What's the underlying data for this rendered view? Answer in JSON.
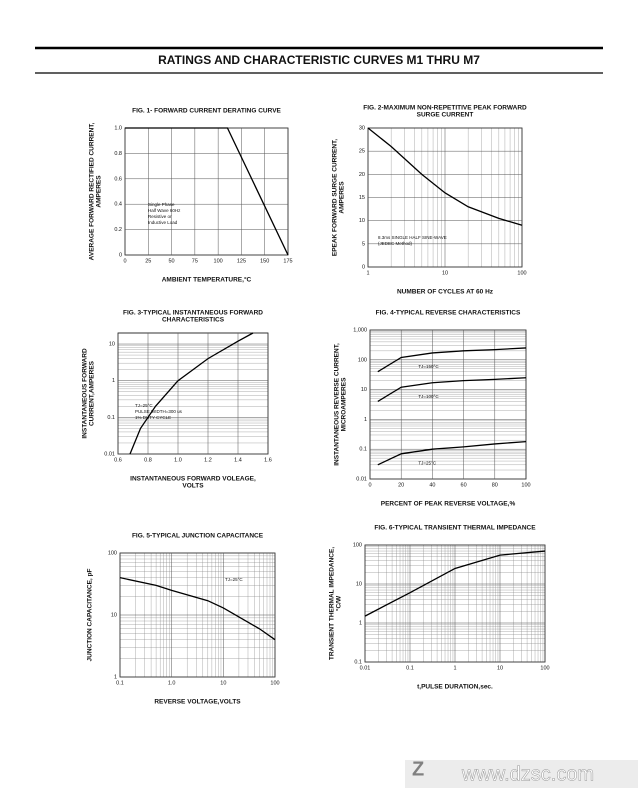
{
  "title": "RATINGS AND CHARACTERISTIC CURVES M1 THRU M7",
  "watermark": "www.dzsc.com",
  "chart_data": [
    {
      "type": "line",
      "title": [
        "FIG. 1- FORWARD CURRENT DERATING CURVE"
      ],
      "xlabel": [
        "AMBIENT TEMPERATURE,°C"
      ],
      "ylabel": [
        "AVERAGE FORWARD RECTIFIED CURRENT,",
        "AMPERES"
      ],
      "x": [
        0,
        110,
        175
      ],
      "series": [
        {
          "color": "#000000",
          "values": [
            1,
            1,
            0
          ]
        }
      ],
      "xlim": [
        0,
        175
      ],
      "xticks": [
        0,
        25,
        50,
        75,
        100,
        125,
        150,
        175
      ],
      "ylim": [
        0,
        1
      ],
      "yticks": [
        0,
        0.2,
        0.4,
        0.6,
        0.8,
        {
          "value": 1,
          "label": "1.0"
        }
      ],
      "annotations": [
        [
          "Single Phase",
          "Half Wave 60Hz",
          "Resistive or",
          "Inductive Load"
        ]
      ],
      "grid": true
    },
    {
      "type": "line",
      "title": [
        "FIG. 2-MAXIMUM NON-REPETITIVE PEAK FORWARD",
        "SURGE CURRENT"
      ],
      "xlabel": [
        "NUMBER OF CYCLES AT 60 Hz"
      ],
      "ylabel": [
        "EPEAK FORWARD SURGE CURRENT,",
        "AMPERES"
      ],
      "x": [
        1,
        2,
        5,
        10,
        20,
        50,
        100
      ],
      "series": [
        {
          "color": "#000000",
          "values": [
            30,
            26,
            20,
            16,
            13,
            10.5,
            9
          ]
        }
      ],
      "xlim": [
        1,
        100
      ],
      "xticks": [
        1,
        10,
        100
      ],
      "xscale": "log",
      "ylim": [
        0,
        30
      ],
      "yticks": [
        0,
        5,
        10,
        15,
        20,
        25,
        30
      ],
      "annotations": [
        [
          "8.3ms SINGLE HALF SINE-WAVE",
          "(JEDEC Method)"
        ]
      ],
      "grid": true
    },
    {
      "type": "line",
      "title": [
        "FIG. 3-TYPICAL INSTANTANEOUS FORWARD",
        "CHARACTERISTICS"
      ],
      "xlabel": [
        "INSTANTANEOUS FORWARD VOLEAGE,",
        "VOLTS"
      ],
      "ylabel": [
        "INSTANTANEOUS FORWARD",
        "CURRENT,AMPERES"
      ],
      "x": [
        0.68,
        0.75,
        0.85,
        1.0,
        1.2,
        1.4,
        1.5
      ],
      "series": [
        {
          "color": "#000000",
          "values": [
            0.01,
            0.05,
            0.2,
            1,
            4,
            12,
            20
          ]
        }
      ],
      "xlim": [
        0.6,
        1.6
      ],
      "xticks": [
        0.6,
        0.8,
        {
          "value": 1,
          "label": "1.0"
        },
        1.2,
        1.4,
        1.6
      ],
      "ylim": [
        0.01,
        20
      ],
      "yticks": [
        0.01,
        0.1,
        1,
        10
      ],
      "yscale": "log",
      "annotations": [
        [
          "TJ=25°C",
          "PULSE WIDTH=300 us",
          "1% DUTY CYCLE"
        ]
      ],
      "grid": true
    },
    {
      "type": "line",
      "title": [
        "FIG. 4-TYPICAL REVERSE CHARACTERISTICS"
      ],
      "xlabel": [
        "PERCENT OF PEAK REVERSE VOLTAGE,%"
      ],
      "ylabel": [
        "INSTANTANEOUS REVERSE CURRENT,",
        "MICROAMPERES"
      ],
      "x": [
        5,
        20,
        40,
        60,
        80,
        100
      ],
      "series": [
        {
          "name": "TJ=150°C",
          "color": "#000000",
          "values": [
            40,
            120,
            170,
            200,
            220,
            250
          ]
        },
        {
          "name": "TJ=100°C",
          "color": "#000000",
          "values": [
            4,
            12,
            17,
            20,
            22,
            25
          ]
        },
        {
          "name": "TJ=25°C",
          "color": "#000000",
          "values": [
            0.03,
            0.07,
            0.1,
            0.12,
            0.15,
            0.18
          ]
        }
      ],
      "xlim": [
        0,
        100
      ],
      "xticks": [
        0,
        20,
        40,
        60,
        80,
        100
      ],
      "ylim": [
        0.01,
        1000
      ],
      "yticks": [
        0.01,
        0.1,
        1,
        10,
        100,
        {
          "value": 1000,
          "label": "1,000"
        }
      ],
      "yscale": "log",
      "grid": true
    },
    {
      "type": "line",
      "title": [
        "FIG. 5-TYPICAL JUNCTION CAPACITANCE"
      ],
      "xlabel": [
        "REVERSE VOLTAGE,VOLTS"
      ],
      "ylabel": [
        "JUNCTION CAPACITANCE, pF"
      ],
      "x": [
        0.1,
        0.5,
        1,
        5,
        10,
        50,
        100
      ],
      "series": [
        {
          "color": "#000000",
          "values": [
            40,
            30,
            25,
            17,
            13,
            6,
            4
          ]
        }
      ],
      "xlim": [
        0.1,
        100
      ],
      "xticks": [
        0.1,
        {
          "value": 1,
          "label": "1.0"
        },
        10,
        100
      ],
      "xscale": "log",
      "ylim": [
        1,
        100
      ],
      "yticks": [
        1,
        10,
        100
      ],
      "yscale": "log",
      "annotations": [
        [
          "TJ=25°C"
        ]
      ],
      "grid": true
    },
    {
      "type": "line",
      "title": [
        "FIG. 6-TYPICAL TRANSIENT THERMAL IMPEDANCE"
      ],
      "xlabel": [
        "t,PULSE DURATION,sec."
      ],
      "ylabel": [
        "TRANSIENT THERMAL IMPEDANCE,",
        "°C/W"
      ],
      "x": [
        0.01,
        0.1,
        1,
        10,
        100
      ],
      "series": [
        {
          "color": "#000000",
          "values": [
            1.5,
            6,
            25,
            55,
            70
          ]
        }
      ],
      "xlim": [
        0.01,
        100
      ],
      "xticks": [
        0.01,
        0.1,
        1,
        10,
        100
      ],
      "xscale": "log",
      "ylim": [
        0.1,
        100
      ],
      "yticks": [
        0.1,
        1,
        10,
        100
      ],
      "yscale": "log",
      "grid": true
    }
  ]
}
